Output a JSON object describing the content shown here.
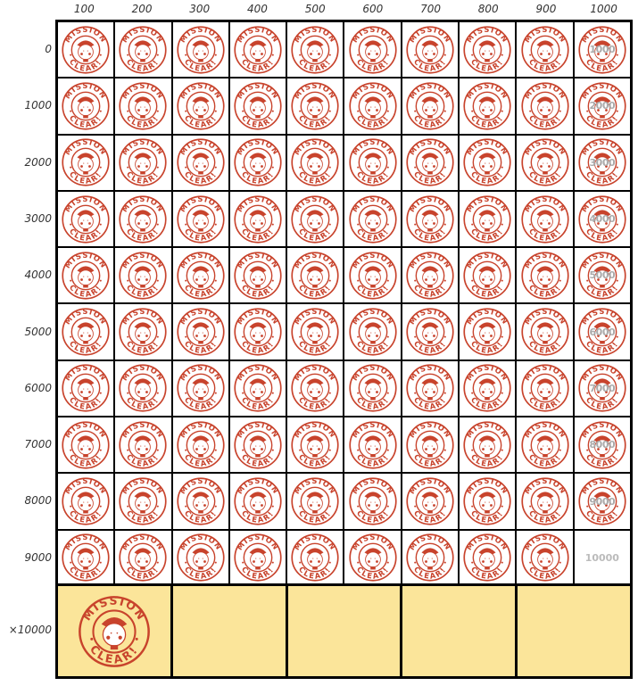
{
  "columns": [
    "100",
    "200",
    "300",
    "400",
    "500",
    "600",
    "700",
    "800",
    "900",
    "1000"
  ],
  "rows": [
    "0",
    "1000",
    "2000",
    "3000",
    "4000",
    "5000",
    "6000",
    "7000",
    "8000",
    "9000"
  ],
  "right_column_overlays": [
    "1000",
    "2000",
    "3000",
    "4000",
    "5000",
    "6000",
    "7000",
    "8000",
    "9000"
  ],
  "last_cell_label": "10000",
  "bonus_row_label": "×10000",
  "bonus_stamps_earned": 1,
  "bonus_slots": 5,
  "stamp": {
    "top_text": "MISSION",
    "bottom_text": "CLEAR!",
    "color": "#c8432c",
    "icon": "mission-clear-stamp"
  },
  "colors": {
    "bonus_bg": "#fbe59a",
    "grid_line": "#000000"
  }
}
